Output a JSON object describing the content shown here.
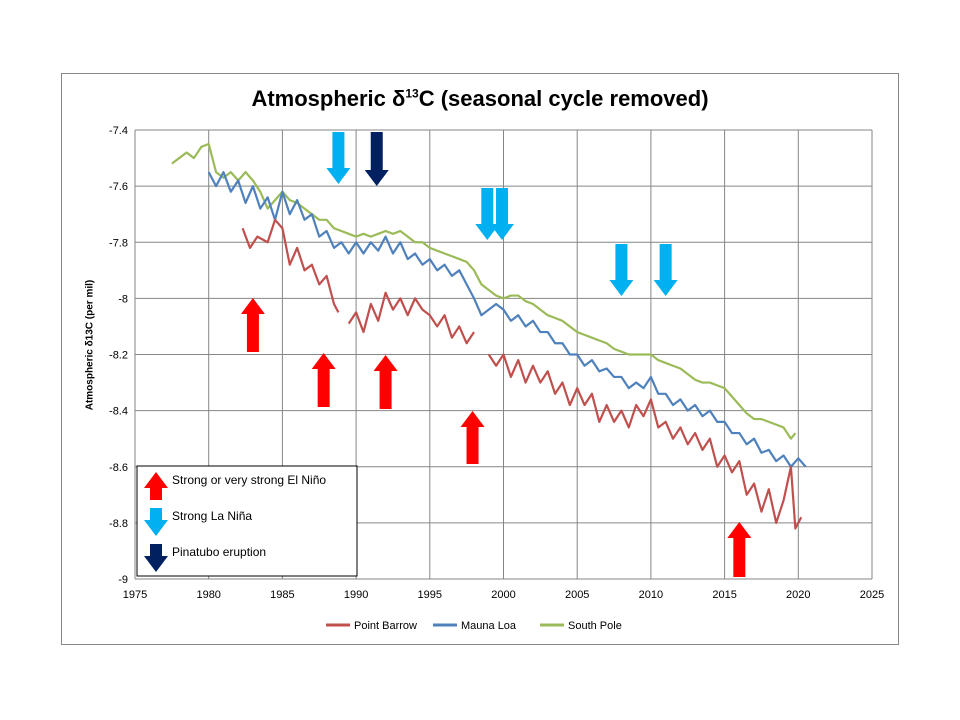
{
  "chart_data": {
    "type": "line",
    "title": "Atmospheric δ13C (seasonal cycle removed)",
    "title_parts": {
      "prefix": "Atmospheric δ",
      "sup": "13",
      "suffix": "C (seasonal cycle removed)"
    },
    "ylabel": "Atmospheric δ13C (per mil)",
    "xlabel": "",
    "xlim": [
      1975,
      2025
    ],
    "ylim": [
      -9,
      -7.4
    ],
    "x_ticks": [
      "1975",
      "1980",
      "1985",
      "1990",
      "1995",
      "2000",
      "2005",
      "2010",
      "2015",
      "2020",
      "2025"
    ],
    "y_ticks": [
      "-7.4",
      "-7.6",
      "-7.8",
      "-8",
      "-8.2",
      "-8.4",
      "-8.6",
      "-8.8",
      "-9"
    ],
    "grid": true,
    "legend_position": "bottom",
    "series": [
      {
        "name": "Point Barrow",
        "color": "#C0504D",
        "segments": [
          [
            [
              1982.3,
              -7.75
            ],
            [
              1982.8,
              -7.82
            ],
            [
              1983.3,
              -7.78
            ],
            [
              1984,
              -7.8
            ],
            [
              1984.5,
              -7.72
            ],
            [
              1985,
              -7.75
            ],
            [
              1985.5,
              -7.88
            ],
            [
              1986,
              -7.82
            ],
            [
              1986.5,
              -7.9
            ],
            [
              1987,
              -7.88
            ],
            [
              1987.5,
              -7.95
            ],
            [
              1988,
              -7.92
            ],
            [
              1988.5,
              -8.02
            ],
            [
              1988.8,
              -8.05
            ]
          ],
          [
            [
              1989.5,
              -8.09
            ],
            [
              1990,
              -8.05
            ],
            [
              1990.5,
              -8.12
            ],
            [
              1991,
              -8.02
            ],
            [
              1991.5,
              -8.08
            ],
            [
              1992,
              -7.98
            ],
            [
              1992.5,
              -8.04
            ],
            [
              1993,
              -8.0
            ],
            [
              1993.5,
              -8.06
            ],
            [
              1994,
              -8.0
            ],
            [
              1994.5,
              -8.04
            ],
            [
              1995,
              -8.06
            ],
            [
              1995.5,
              -8.1
            ],
            [
              1996,
              -8.06
            ],
            [
              1996.5,
              -8.14
            ],
            [
              1997,
              -8.1
            ],
            [
              1997.5,
              -8.16
            ],
            [
              1998,
              -8.12
            ]
          ],
          [
            [
              1999,
              -8.2
            ],
            [
              1999.5,
              -8.24
            ],
            [
              2000,
              -8.2
            ],
            [
              2000.5,
              -8.28
            ],
            [
              2001,
              -8.22
            ],
            [
              2001.5,
              -8.3
            ],
            [
              2002,
              -8.24
            ],
            [
              2002.5,
              -8.3
            ],
            [
              2003,
              -8.26
            ],
            [
              2003.5,
              -8.34
            ],
            [
              2004,
              -8.3
            ],
            [
              2004.5,
              -8.38
            ],
            [
              2005,
              -8.32
            ],
            [
              2005.5,
              -8.38
            ],
            [
              2006,
              -8.34
            ],
            [
              2006.5,
              -8.44
            ],
            [
              2007,
              -8.38
            ],
            [
              2007.5,
              -8.44
            ],
            [
              2008,
              -8.4
            ],
            [
              2008.5,
              -8.46
            ],
            [
              2009,
              -8.38
            ],
            [
              2009.5,
              -8.42
            ],
            [
              2010,
              -8.36
            ],
            [
              2010.5,
              -8.46
            ],
            [
              2011,
              -8.44
            ],
            [
              2011.5,
              -8.5
            ],
            [
              2012,
              -8.46
            ],
            [
              2012.5,
              -8.52
            ],
            [
              2013,
              -8.48
            ],
            [
              2013.5,
              -8.54
            ],
            [
              2014,
              -8.5
            ],
            [
              2014.5,
              -8.6
            ],
            [
              2015,
              -8.56
            ],
            [
              2015.5,
              -8.62
            ],
            [
              2016,
              -8.58
            ],
            [
              2016.5,
              -8.7
            ],
            [
              2017,
              -8.66
            ],
            [
              2017.5,
              -8.76
            ],
            [
              2018,
              -8.68
            ],
            [
              2018.5,
              -8.8
            ],
            [
              2019,
              -8.72
            ],
            [
              2019.5,
              -8.6
            ],
            [
              2019.8,
              -8.82
            ],
            [
              2020.2,
              -8.78
            ]
          ]
        ]
      },
      {
        "name": "Mauna Loa",
        "color": "#4F81BD",
        "segments": [
          [
            [
              1980,
              -7.55
            ],
            [
              1980.5,
              -7.6
            ],
            [
              1981,
              -7.55
            ],
            [
              1981.5,
              -7.62
            ],
            [
              1982,
              -7.58
            ],
            [
              1982.5,
              -7.66
            ],
            [
              1983,
              -7.6
            ],
            [
              1983.5,
              -7.68
            ],
            [
              1984,
              -7.64
            ],
            [
              1984.5,
              -7.72
            ],
            [
              1985,
              -7.62
            ],
            [
              1985.5,
              -7.7
            ],
            [
              1986,
              -7.65
            ],
            [
              1986.5,
              -7.72
            ],
            [
              1987,
              -7.7
            ],
            [
              1987.5,
              -7.78
            ],
            [
              1988,
              -7.76
            ],
            [
              1988.5,
              -7.82
            ],
            [
              1989,
              -7.8
            ],
            [
              1989.5,
              -7.84
            ],
            [
              1990,
              -7.8
            ],
            [
              1990.5,
              -7.84
            ],
            [
              1991,
              -7.8
            ],
            [
              1991.5,
              -7.83
            ],
            [
              1992,
              -7.78
            ],
            [
              1992.5,
              -7.84
            ],
            [
              1993,
              -7.8
            ],
            [
              1993.5,
              -7.86
            ],
            [
              1994,
              -7.84
            ],
            [
              1994.5,
              -7.88
            ],
            [
              1995,
              -7.86
            ],
            [
              1995.5,
              -7.9
            ],
            [
              1996,
              -7.88
            ],
            [
              1996.5,
              -7.92
            ],
            [
              1997,
              -7.9
            ],
            [
              1997.5,
              -7.95
            ],
            [
              1998,
              -8.0
            ],
            [
              1998.5,
              -8.06
            ],
            [
              1999,
              -8.04
            ],
            [
              1999.5,
              -8.02
            ],
            [
              2000,
              -8.04
            ],
            [
              2000.5,
              -8.08
            ],
            [
              2001,
              -8.06
            ],
            [
              2001.5,
              -8.1
            ],
            [
              2002,
              -8.08
            ],
            [
              2002.5,
              -8.12
            ],
            [
              2003,
              -8.12
            ],
            [
              2003.5,
              -8.16
            ],
            [
              2004,
              -8.16
            ],
            [
              2004.5,
              -8.2
            ],
            [
              2005,
              -8.2
            ],
            [
              2005.5,
              -8.24
            ],
            [
              2006,
              -8.22
            ],
            [
              2006.5,
              -8.26
            ],
            [
              2007,
              -8.25
            ],
            [
              2007.5,
              -8.28
            ],
            [
              2008,
              -8.28
            ],
            [
              2008.5,
              -8.32
            ],
            [
              2009,
              -8.3
            ],
            [
              2009.5,
              -8.32
            ],
            [
              2010,
              -8.28
            ],
            [
              2010.5,
              -8.34
            ],
            [
              2011,
              -8.34
            ],
            [
              2011.5,
              -8.38
            ],
            [
              2012,
              -8.36
            ],
            [
              2012.5,
              -8.4
            ],
            [
              2013,
              -8.38
            ],
            [
              2013.5,
              -8.42
            ],
            [
              2014,
              -8.4
            ],
            [
              2014.5,
              -8.44
            ],
            [
              2015,
              -8.44
            ],
            [
              2015.5,
              -8.48
            ],
            [
              2016,
              -8.48
            ],
            [
              2016.5,
              -8.52
            ],
            [
              2017,
              -8.5
            ],
            [
              2017.5,
              -8.55
            ],
            [
              2018,
              -8.54
            ],
            [
              2018.5,
              -8.58
            ],
            [
              2019,
              -8.56
            ],
            [
              2019.5,
              -8.6
            ],
            [
              2020,
              -8.57
            ],
            [
              2020.5,
              -8.6
            ]
          ]
        ]
      },
      {
        "name": "South Pole",
        "color": "#9BBB59",
        "segments": [
          [
            [
              1977.5,
              -7.52
            ],
            [
              1978,
              -7.5
            ],
            [
              1978.5,
              -7.48
            ],
            [
              1979,
              -7.5
            ],
            [
              1979.5,
              -7.46
            ],
            [
              1980,
              -7.45
            ],
            [
              1980.5,
              -7.55
            ],
            [
              1981,
              -7.57
            ],
            [
              1981.5,
              -7.55
            ],
            [
              1982,
              -7.58
            ],
            [
              1982.5,
              -7.55
            ],
            [
              1983,
              -7.58
            ],
            [
              1983.5,
              -7.62
            ],
            [
              1984,
              -7.68
            ],
            [
              1984.5,
              -7.65
            ],
            [
              1985,
              -7.62
            ],
            [
              1985.5,
              -7.65
            ],
            [
              1986,
              -7.66
            ],
            [
              1986.5,
              -7.68
            ],
            [
              1987,
              -7.7
            ],
            [
              1987.5,
              -7.72
            ],
            [
              1988,
              -7.72
            ],
            [
              1988.5,
              -7.75
            ],
            [
              1989,
              -7.76
            ],
            [
              1989.5,
              -7.77
            ],
            [
              1990,
              -7.78
            ],
            [
              1990.5,
              -7.77
            ],
            [
              1991,
              -7.78
            ],
            [
              1991.5,
              -7.77
            ],
            [
              1992,
              -7.76
            ],
            [
              1992.5,
              -7.77
            ],
            [
              1993,
              -7.76
            ],
            [
              1993.5,
              -7.78
            ],
            [
              1994,
              -7.8
            ],
            [
              1994.5,
              -7.8
            ],
            [
              1995,
              -7.82
            ],
            [
              1995.5,
              -7.83
            ],
            [
              1996,
              -7.84
            ],
            [
              1996.5,
              -7.85
            ],
            [
              1997,
              -7.86
            ],
            [
              1997.5,
              -7.87
            ],
            [
              1998,
              -7.9
            ],
            [
              1998.5,
              -7.95
            ],
            [
              1999,
              -7.97
            ],
            [
              1999.5,
              -7.99
            ],
            [
              2000,
              -8.0
            ],
            [
              2000.5,
              -7.99
            ],
            [
              2001,
              -7.99
            ],
            [
              2001.5,
              -8.01
            ],
            [
              2002,
              -8.02
            ],
            [
              2002.5,
              -8.04
            ],
            [
              2003,
              -8.06
            ],
            [
              2003.5,
              -8.07
            ],
            [
              2004,
              -8.08
            ],
            [
              2004.5,
              -8.1
            ],
            [
              2005,
              -8.12
            ],
            [
              2005.5,
              -8.13
            ],
            [
              2006,
              -8.14
            ],
            [
              2006.5,
              -8.15
            ],
            [
              2007,
              -8.16
            ],
            [
              2007.5,
              -8.18
            ],
            [
              2008,
              -8.19
            ],
            [
              2008.5,
              -8.2
            ],
            [
              2009,
              -8.2
            ],
            [
              2009.5,
              -8.2
            ],
            [
              2010,
              -8.2
            ],
            [
              2010.5,
              -8.22
            ],
            [
              2011,
              -8.23
            ],
            [
              2011.5,
              -8.24
            ],
            [
              2012,
              -8.25
            ],
            [
              2012.5,
              -8.27
            ],
            [
              2013,
              -8.29
            ],
            [
              2013.5,
              -8.3
            ],
            [
              2014,
              -8.3
            ],
            [
              2014.5,
              -8.31
            ],
            [
              2015,
              -8.32
            ],
            [
              2015.5,
              -8.35
            ],
            [
              2016,
              -8.38
            ],
            [
              2016.5,
              -8.41
            ],
            [
              2017,
              -8.43
            ],
            [
              2017.5,
              -8.43
            ],
            [
              2018,
              -8.44
            ],
            [
              2018.5,
              -8.45
            ],
            [
              2019,
              -8.46
            ],
            [
              2019.5,
              -8.5
            ],
            [
              2019.8,
              -8.48
            ]
          ]
        ]
      }
    ],
    "annotations": {
      "el_nino": {
        "label": "Strong or very strong El Niño",
        "color": "#FF0000",
        "years": [
          1983,
          1987.8,
          1992,
          1997.9,
          2016
        ]
      },
      "la_nina": {
        "label": "Strong La Niña",
        "color": "#00B0F0",
        "years": [
          1988.8,
          1998.9,
          1999.9,
          2008,
          2011
        ]
      },
      "pinatubo": {
        "label": "Pinatubo eruption",
        "color": "#002060",
        "years": [
          1991.4
        ]
      }
    }
  }
}
